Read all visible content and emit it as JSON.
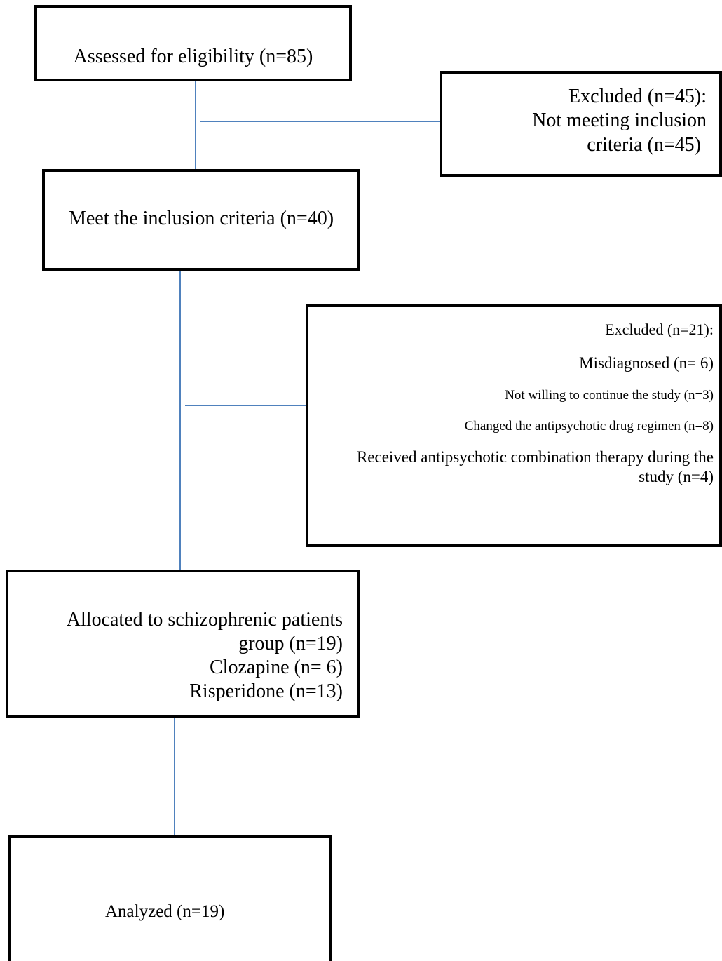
{
  "boxes": {
    "assessed": {
      "text": "Assessed for eligibility (n=85)"
    },
    "excluded_45": {
      "lines": [
        "Excluded (n=45):",
        "Not meeting inclusion",
        "criteria (n=45)"
      ]
    },
    "meet_inclusion": {
      "text": "Meet the inclusion criteria (n=40)"
    },
    "excluded_21": {
      "lines": [
        "Excluded (n=21):",
        "Misdiagnosed (n= 6)",
        "Not willing to continue the study (n=3)",
        "Changed the antipsychotic drug regimen (n=8)",
        "Received antipsychotic combination therapy during the",
        "study (n=4)"
      ]
    },
    "allocated": {
      "lines": [
        "Allocated to schizophrenic patients",
        "group (n=19)",
        "Clozapine (n= 6)",
        "Risperidone (n=13)"
      ]
    },
    "analyzed": {
      "text": "Analyzed (n=19)"
    }
  },
  "colors": {
    "box_border": "#000000",
    "connector": "#4f81bd",
    "background": "#ffffff"
  }
}
